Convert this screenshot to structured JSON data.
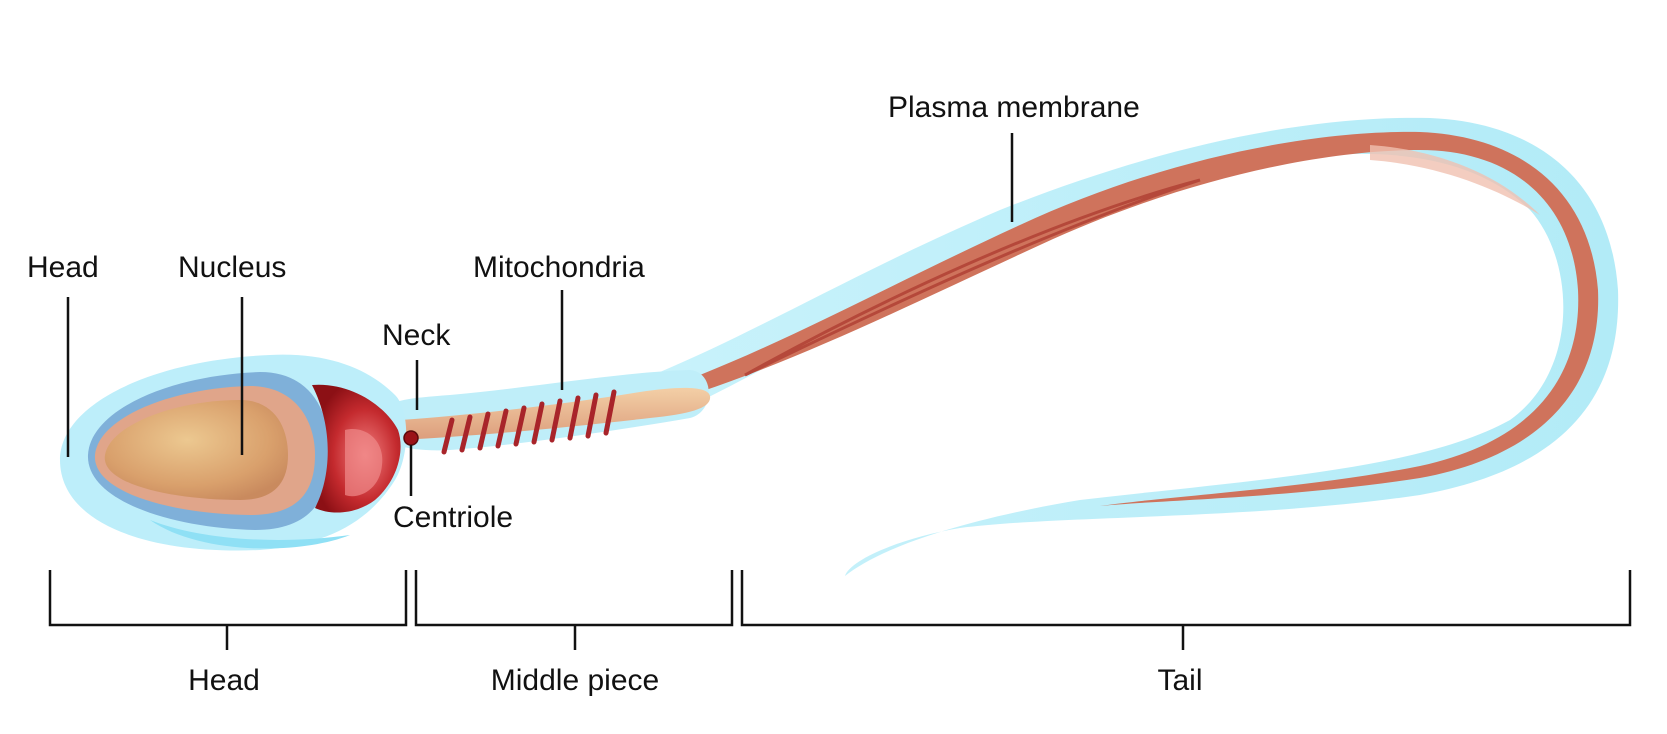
{
  "labels": {
    "head_top": "Head",
    "nucleus": "Nucleus",
    "neck": "Neck",
    "mitochondria": "Mitochondria",
    "plasma_membrane": "Plasma membrane",
    "centriole": "Centriole"
  },
  "sections": {
    "head": "Head",
    "middle_piece": "Middle piece",
    "tail": "Tail"
  },
  "colors": {
    "membrane": "#bdeef8",
    "membrane_edge": "#9fe3f3",
    "nucleus": "#d79a6a",
    "nucleus_light": "#e8c08c",
    "acrosome_ring": "#6fa3cf",
    "neck_red": "#b01820",
    "midpiece": "#e9b28f",
    "mitochondria_coil": "#b0282a",
    "tail": "#cc6b55",
    "tail_highlight": "#e9a896"
  }
}
